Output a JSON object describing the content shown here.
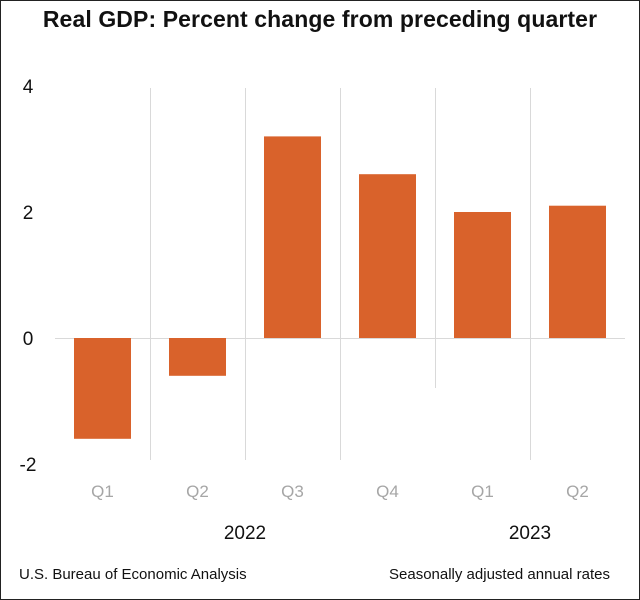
{
  "chart_data": {
    "type": "bar",
    "title": "Real GDP:  Percent change from preceding quarter",
    "categories": [
      "Q1",
      "Q2",
      "Q3",
      "Q4",
      "Q1",
      "Q2"
    ],
    "values": [
      -1.6,
      -0.6,
      3.2,
      2.6,
      2.0,
      2.1
    ],
    "groups": [
      {
        "label": "2022",
        "categories": [
          "Q1",
          "Q2",
          "Q3",
          "Q4"
        ]
      },
      {
        "label": "2023",
        "categories": [
          "Q1",
          "Q2"
        ]
      }
    ],
    "ylim": [
      -2,
      4
    ],
    "yticks": [
      {
        "value": 4,
        "label": "4"
      },
      {
        "value": 2,
        "label": "2"
      },
      {
        "value": 0,
        "label": "0"
      },
      {
        "value": -2,
        "label": "-2"
      }
    ],
    "xlabel": "",
    "ylabel": "",
    "bar_color": "#d9622b",
    "grid": "vertical separators"
  },
  "footer": {
    "source": "U.S. Bureau of Economic Analysis",
    "note": "Seasonally adjusted annual rates"
  }
}
